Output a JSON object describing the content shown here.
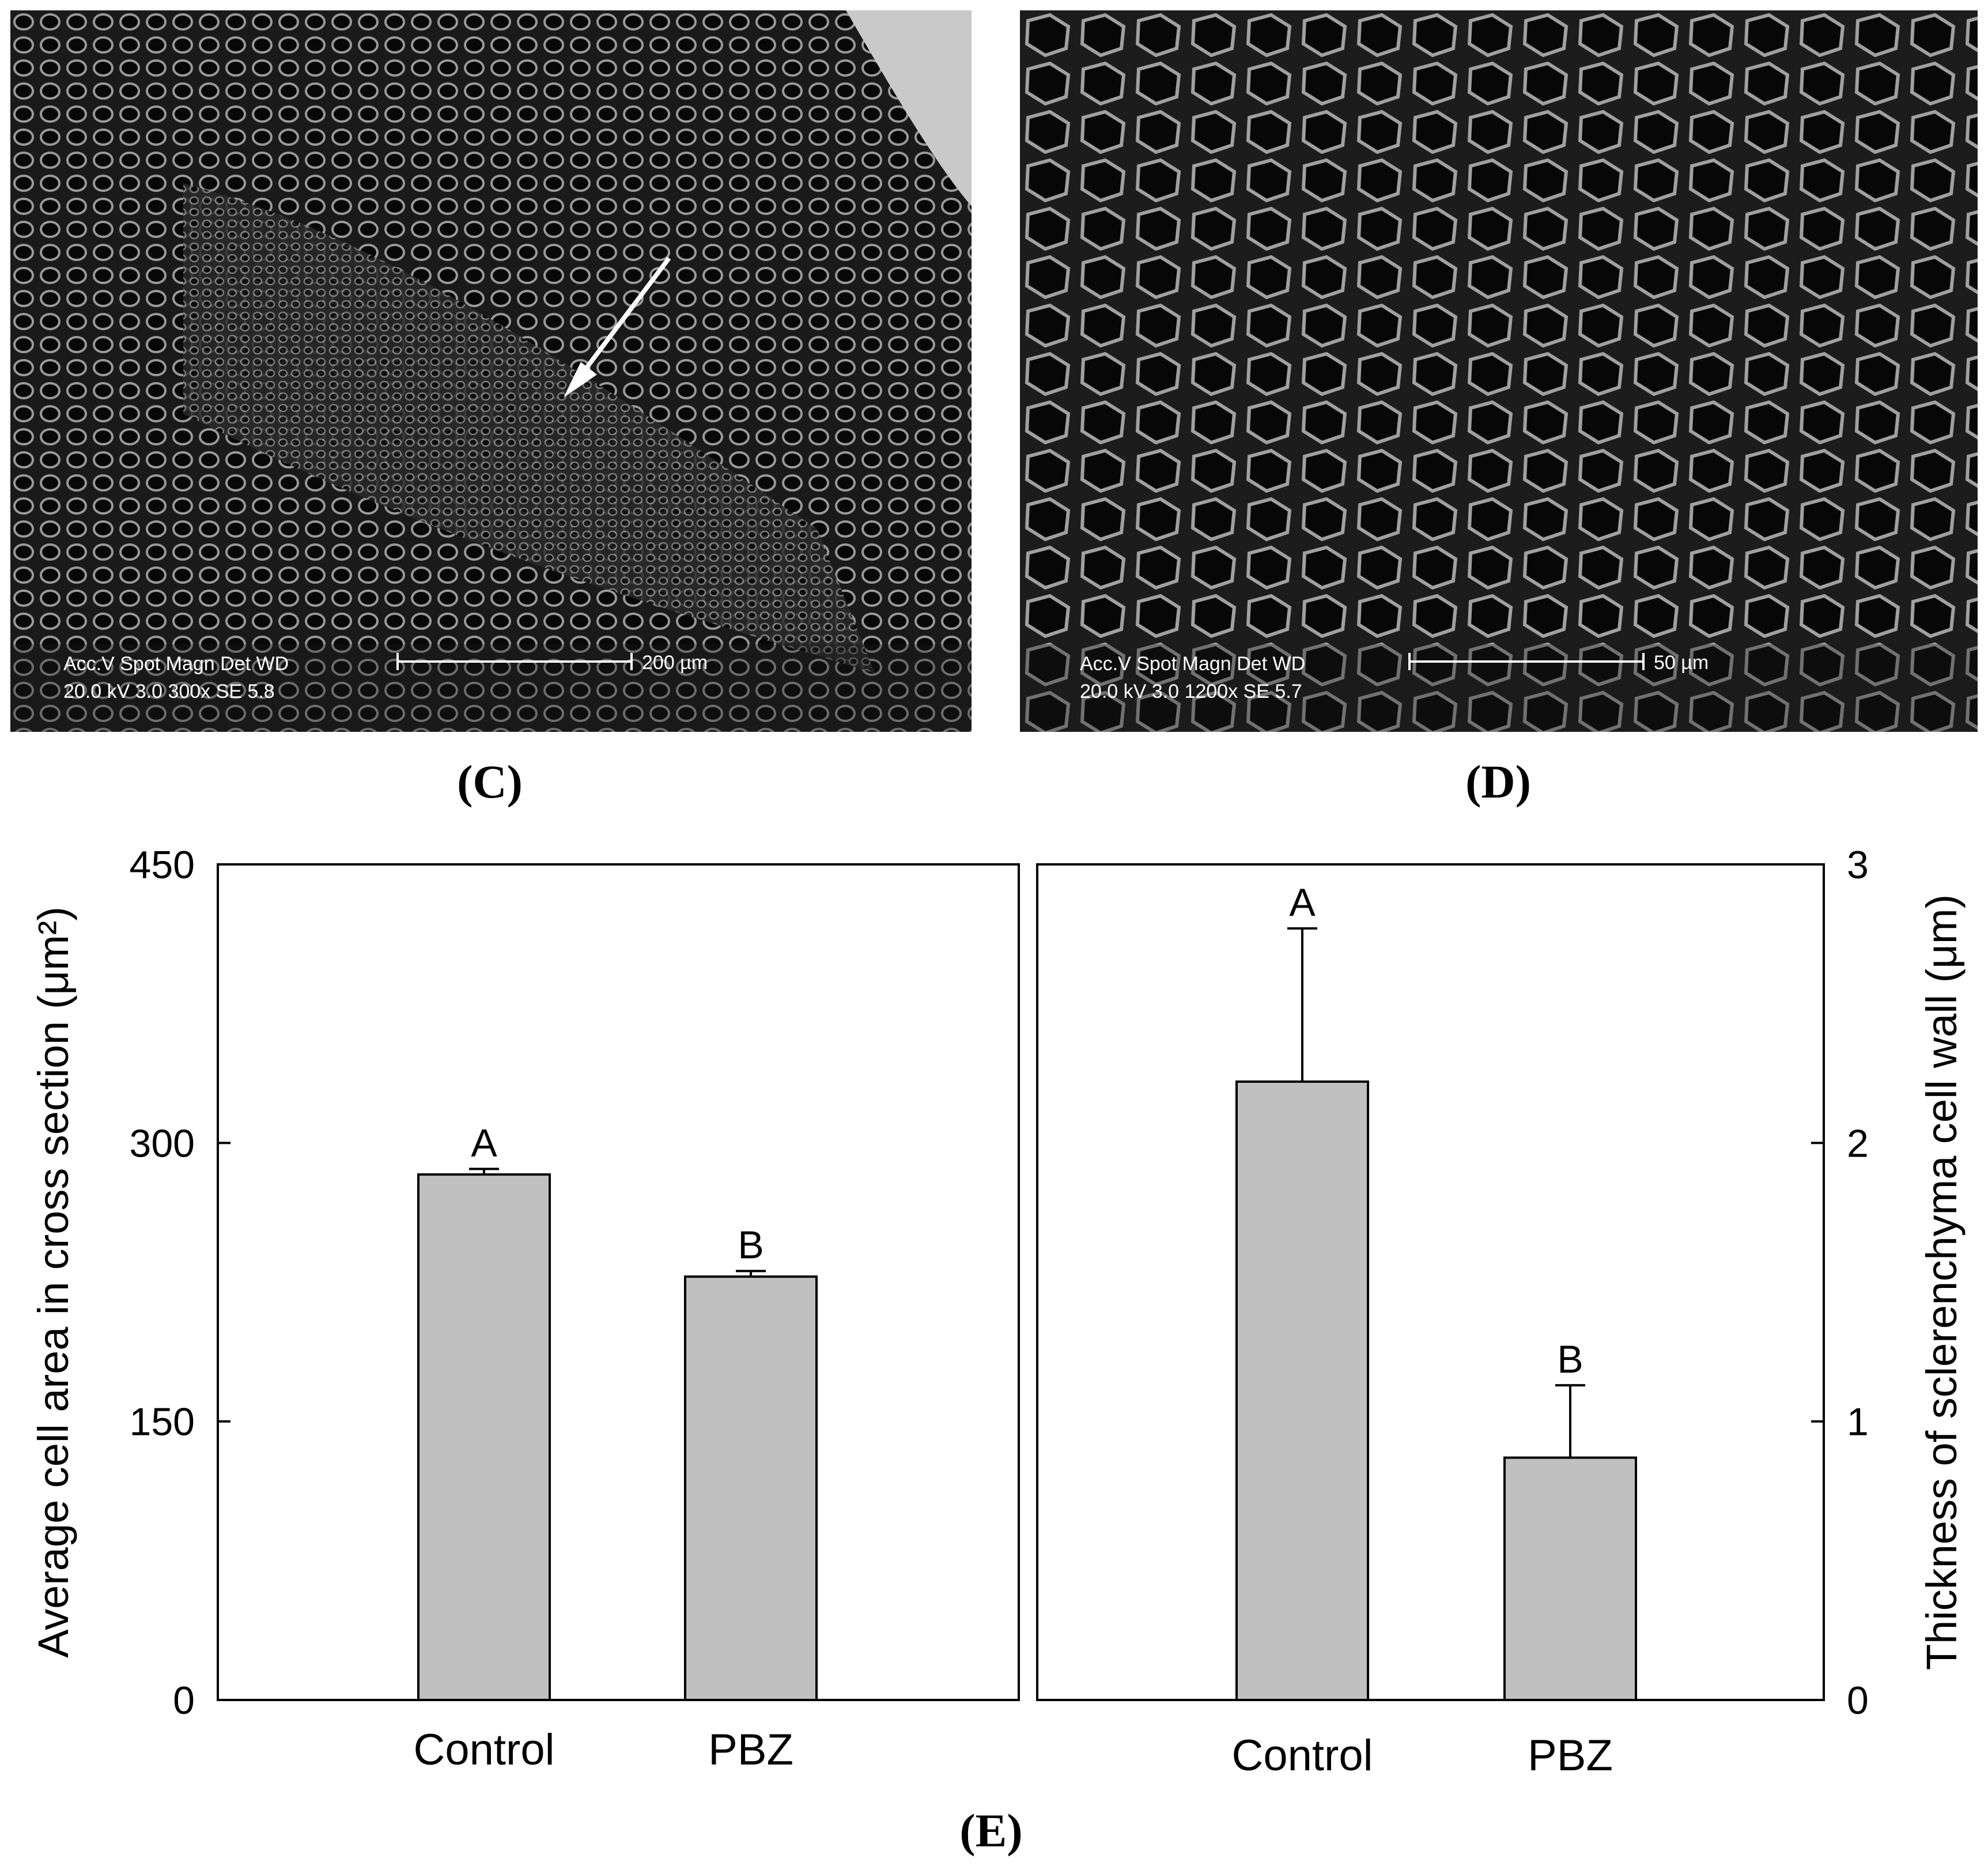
{
  "panels": {
    "c": {
      "label": "(C)",
      "scalebar_text": "200 µm",
      "info_line1": "Acc.V   Spot Magn     Det   WD",
      "info_line2": "20.0 kV 3.0    300x      SE    5.8"
    },
    "d": {
      "label": "(D)",
      "scalebar_text": "50 µm",
      "info_line1": "Acc.V   Spot Magn     Det   WD",
      "info_line2": "20.0 kV 3.0    1200x     SE    5.7"
    },
    "e": {
      "label": "(E)"
    }
  },
  "chart_data": [
    {
      "type": "bar",
      "categories": [
        "Control",
        "PBZ"
      ],
      "values": [
        283,
        228
      ],
      "errors": [
        3,
        3
      ],
      "significance": [
        "A",
        "B"
      ],
      "ylabel": "Average cell area in cross section (μm²)",
      "ylim": [
        0,
        450
      ],
      "yticks": [
        0,
        150,
        300,
        450
      ],
      "y_axis_side": "left",
      "bar_color": "#c0c0c0"
    },
    {
      "type": "bar",
      "categories": [
        "Control",
        "PBZ"
      ],
      "values": [
        2.22,
        0.87
      ],
      "errors": [
        0.55,
        0.26
      ],
      "significance": [
        "A",
        "B"
      ],
      "ylabel": "Thickness of sclerenchyma cell wall (μm)",
      "ylim": [
        0,
        3
      ],
      "yticks": [
        0,
        1,
        2,
        3
      ],
      "y_axis_side": "right",
      "bar_color": "#c0c0c0"
    }
  ]
}
